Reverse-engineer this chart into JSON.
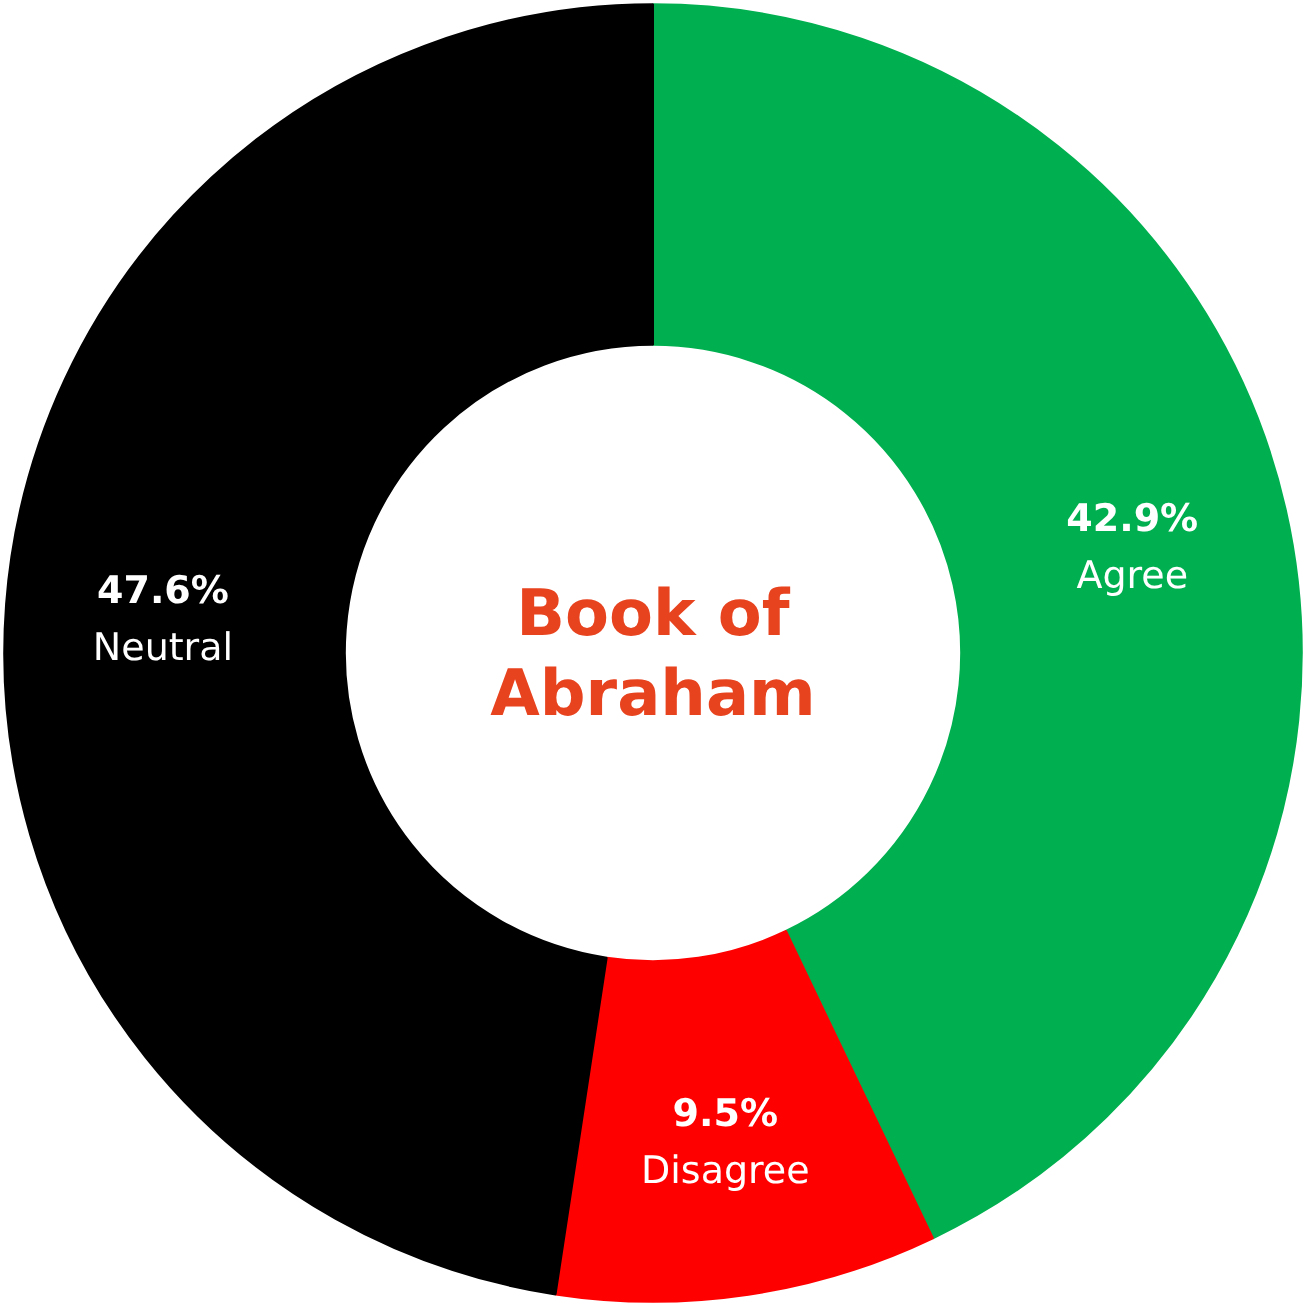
{
  "chart_data": {
    "type": "donut",
    "title": "Book of Abraham",
    "categories": [
      "Agree",
      "Disagree",
      "Neutral"
    ],
    "values": [
      42.9,
      9.5,
      47.6
    ],
    "value_labels": [
      "42.9%",
      "9.5%",
      "47.6%"
    ],
    "colors": [
      "#00b050",
      "#ff0000",
      "#000000"
    ],
    "legend": false
  }
}
